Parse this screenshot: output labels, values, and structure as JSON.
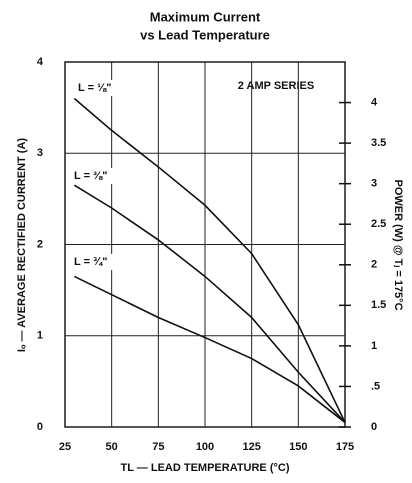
{
  "chart_data": {
    "type": "line",
    "title": "Maximum Current",
    "subtitle": "vs Lead Temperature",
    "x_label": "TL — LEAD TEMPERATURE (°C)",
    "y_label": "Iₒ — AVERAGE RECTIFIED CURRENT (A)",
    "y2_label": "POWER (W) @ Tⱼ = 175°C",
    "annotation": "2 AMP SERIES",
    "x": [
      30,
      50,
      75,
      100,
      125,
      150,
      175
    ],
    "series": [
      {
        "name": "L = ⅛\"",
        "color": "#111111",
        "values": [
          3.6,
          3.25,
          2.85,
          2.43,
          1.9,
          1.12,
          0.05
        ]
      },
      {
        "name": "L = ⅜\"",
        "color": "#111111",
        "values": [
          2.65,
          2.4,
          2.05,
          1.65,
          1.2,
          0.6,
          0.05
        ]
      },
      {
        "name": "L = ¾\"",
        "color": "#111111",
        "values": [
          1.65,
          1.45,
          1.2,
          0.98,
          0.75,
          0.45,
          0.05
        ]
      }
    ],
    "xlim": [
      25,
      175
    ],
    "xticks": [
      25,
      50,
      75,
      100,
      125,
      150,
      175
    ],
    "ylim": [
      0,
      4
    ],
    "yticks": [
      0,
      1,
      2,
      3,
      4
    ],
    "y2lim": [
      0,
      4.5
    ],
    "y2ticks": [
      0,
      {
        "value": 0.5,
        "label": ".5"
      },
      1,
      1.5,
      2,
      2.5,
      3,
      3.5,
      4
    ],
    "grid": true
  }
}
